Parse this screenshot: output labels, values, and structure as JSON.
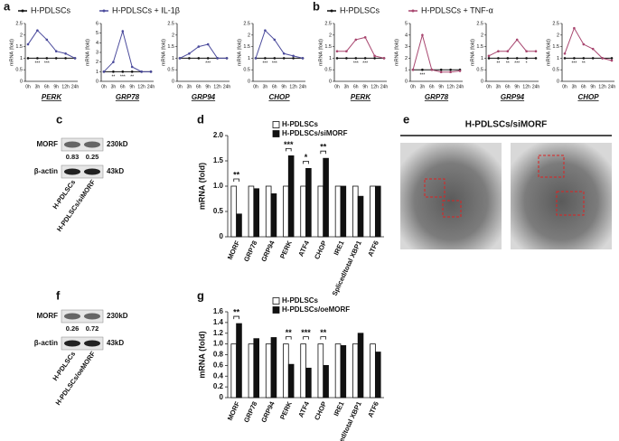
{
  "panel_labels": [
    "a",
    "b",
    "c",
    "d",
    "e",
    "f",
    "g"
  ],
  "chart_data": [
    {
      "type": "line",
      "xlabel": "PERK",
      "ylabel": "mRNA (fold)",
      "categories": [
        "0h",
        "3h",
        "6h",
        "9h",
        "12h",
        "24h"
      ],
      "ylim": [
        0,
        2.5
      ],
      "yticks": [
        0,
        0.5,
        1,
        1.5,
        2,
        2.5
      ],
      "series": [
        {
          "name": "H-PDLSCs",
          "color": "#111111",
          "values": [
            1,
            1,
            1,
            1,
            1,
            1
          ]
        },
        {
          "name": "H-PDLSCs + IL-1β",
          "color": "#4b4b9c",
          "values": [
            1.6,
            2.2,
            1.8,
            1.3,
            1.2,
            1.0
          ]
        }
      ],
      "annotations": [
        null,
        "***",
        "***",
        null,
        null,
        null
      ]
    },
    {
      "type": "line",
      "xlabel": "GRP78",
      "ylabel": "mRNA (fold)",
      "categories": [
        "0h",
        "3h",
        "6h",
        "9h",
        "12h",
        "24h"
      ],
      "ylim": [
        0,
        6
      ],
      "yticks": [
        0,
        1,
        2,
        3,
        4,
        5,
        6
      ],
      "series": [
        {
          "name": "H-PDLSCs",
          "color": "#111111",
          "values": [
            1,
            1,
            1,
            1,
            1,
            1
          ]
        },
        {
          "name": "H-PDLSCs + IL-1β",
          "color": "#4b4b9c",
          "values": [
            1.0,
            2.0,
            5.2,
            1.5,
            1.0,
            1.0
          ]
        }
      ],
      "annotations": [
        null,
        "**",
        "***",
        "**",
        null,
        null
      ]
    },
    {
      "type": "line",
      "xlabel": "GRP94",
      "ylabel": "mRNA (fold)",
      "categories": [
        "0h",
        "3h",
        "6h",
        "9h",
        "12h",
        "24h"
      ],
      "ylim": [
        0,
        2.5
      ],
      "yticks": [
        0,
        0.5,
        1,
        1.5,
        2,
        2.5
      ],
      "series": [
        {
          "name": "H-PDLSCs",
          "color": "#111111",
          "values": [
            1,
            1,
            1,
            1,
            1,
            1
          ]
        },
        {
          "name": "H-PDLSCs + IL-1β",
          "color": "#4b4b9c",
          "values": [
            1.0,
            1.2,
            1.5,
            1.6,
            1.0,
            1.0
          ]
        }
      ],
      "annotations": [
        null,
        null,
        null,
        "***",
        null,
        null
      ]
    },
    {
      "type": "line",
      "xlabel": "CHOP",
      "ylabel": "mRNA (fold)",
      "categories": [
        "0h",
        "3h",
        "6h",
        "9h",
        "12h",
        "24h"
      ],
      "ylim": [
        0,
        2.5
      ],
      "yticks": [
        0,
        0.5,
        1,
        1.5,
        2,
        2.5
      ],
      "series": [
        {
          "name": "H-PDLSCs",
          "color": "#111111",
          "values": [
            1,
            1,
            1,
            1,
            1,
            1
          ]
        },
        {
          "name": "H-PDLSCs + IL-1β",
          "color": "#4b4b9c",
          "values": [
            1.0,
            2.2,
            1.8,
            1.2,
            1.1,
            1.0
          ]
        }
      ],
      "annotations": [
        null,
        "***",
        "***",
        null,
        null,
        null
      ]
    },
    {
      "type": "line",
      "xlabel": "PERK",
      "ylabel": "mRNA (fold)",
      "categories": [
        "0h",
        "3h",
        "6h",
        "9h",
        "12h",
        "24h"
      ],
      "ylim": [
        0,
        2.5
      ],
      "yticks": [
        0,
        0.5,
        1,
        1.5,
        2,
        2.5
      ],
      "series": [
        {
          "name": "H-PDLSCs",
          "color": "#111111",
          "values": [
            1,
            1,
            1,
            1,
            1,
            1
          ]
        },
        {
          "name": "H-PDLSCs + TNF-α",
          "color": "#a8466f",
          "values": [
            1.3,
            1.3,
            1.8,
            1.9,
            1.1,
            1.0
          ]
        }
      ],
      "annotations": [
        null,
        null,
        "***",
        "***",
        null,
        null
      ]
    },
    {
      "type": "line",
      "xlabel": "GRP78",
      "ylabel": "mRNA (fold)",
      "categories": [
        "0h",
        "3h",
        "6h",
        "9h",
        "12h",
        "24h"
      ],
      "ylim": [
        0,
        5
      ],
      "yticks": [
        0,
        1,
        2,
        3,
        4,
        5
      ],
      "series": [
        {
          "name": "H-PDLSCs",
          "color": "#111111",
          "values": [
            1,
            1,
            1,
            1,
            1,
            1
          ]
        },
        {
          "name": "H-PDLSCs + TNF-α",
          "color": "#a8466f",
          "values": [
            1.0,
            4.0,
            1.0,
            0.8,
            0.8,
            0.9
          ]
        }
      ],
      "annotations": [
        null,
        "***",
        null,
        null,
        null,
        null
      ]
    },
    {
      "type": "line",
      "xlabel": "GRP94",
      "ylabel": "mRNA (fold)",
      "categories": [
        "0h",
        "3h",
        "6h",
        "9h",
        "12h",
        "24h"
      ],
      "ylim": [
        0,
        2.5
      ],
      "yticks": [
        0,
        0.5,
        1,
        1.5,
        2,
        2.5
      ],
      "series": [
        {
          "name": "H-PDLSCs",
          "color": "#111111",
          "values": [
            1,
            1,
            1,
            1,
            1,
            1
          ]
        },
        {
          "name": "H-PDLSCs + TNF-α",
          "color": "#a8466f",
          "values": [
            1.1,
            1.3,
            1.3,
            1.8,
            1.3,
            1.3
          ]
        }
      ],
      "annotations": [
        null,
        "**",
        "**",
        "***",
        "*",
        null
      ]
    },
    {
      "type": "line",
      "xlabel": "CHOP",
      "ylabel": "mRNA (fold)",
      "categories": [
        "0h",
        "3h",
        "6h",
        "9h",
        "12h",
        "24h"
      ],
      "ylim": [
        0,
        2.5
      ],
      "yticks": [
        0,
        0.5,
        1,
        1.5,
        2,
        2.5
      ],
      "series": [
        {
          "name": "H-PDLSCs",
          "color": "#111111",
          "values": [
            1,
            1,
            1,
            1,
            1,
            1
          ]
        },
        {
          "name": "H-PDLSCs + TNF-α",
          "color": "#a8466f",
          "values": [
            1.2,
            2.3,
            1.6,
            1.4,
            1.0,
            0.9
          ]
        }
      ],
      "annotations": [
        null,
        "***",
        "**",
        null,
        null,
        null
      ]
    },
    {
      "type": "bar",
      "ylabel": "mRNA (fold)",
      "categories": [
        "MORF",
        "GRP78",
        "GRP94",
        "PERK",
        "ATF4",
        "CHOP",
        "IRE1",
        "Spliced/total XBP1",
        "ATF6"
      ],
      "category_colors": [
        "#111111",
        "#111111",
        "#111111",
        "#c0302a",
        "#c0302a",
        "#c0302a",
        "#111111",
        "#111111",
        "#111111"
      ],
      "ylim": [
        0,
        2.0
      ],
      "yticks": [
        0,
        0.5,
        {
          "value": 1,
          "label": "1.0"
        },
        1.5,
        {
          "value": 2,
          "label": "2.0"
        }
      ],
      "series": [
        {
          "name": "H-PDLSCs",
          "color": "#ffffff",
          "values": [
            1,
            1,
            1,
            1,
            1,
            1,
            1,
            1,
            1
          ]
        },
        {
          "name": "H-PDLSCs/siMORF",
          "color": "#111111",
          "values": [
            0.45,
            0.95,
            0.85,
            1.6,
            1.35,
            1.55,
            1.0,
            0.8,
            1.0
          ]
        }
      ],
      "annotations": [
        "**",
        null,
        null,
        "***",
        "*",
        "**",
        null,
        null,
        null
      ]
    },
    {
      "type": "bar",
      "ylabel": "mRNA (fold)",
      "categories": [
        "MORF",
        "GRP78",
        "GRP94",
        "PERK",
        "ATF4",
        "CHOP",
        "IRE1",
        "Spliced/total XBP1",
        "ATF6"
      ],
      "category_colors": [
        "#111111",
        "#111111",
        "#111111",
        "#c0302a",
        "#c0302a",
        "#c0302a",
        "#111111",
        "#111111",
        "#111111"
      ],
      "ylim": [
        0,
        1.6
      ],
      "yticks": [
        0,
        0.2,
        0.4,
        0.6,
        0.8,
        {
          "value": 1,
          "label": "1.0"
        },
        1.2,
        1.4,
        1.6
      ],
      "series": [
        {
          "name": "H-PDLSCs",
          "color": "#ffffff",
          "values": [
            1,
            1,
            1,
            1,
            1,
            1,
            1,
            1,
            1
          ]
        },
        {
          "name": "H-PDLSCs/oeMORF",
          "color": "#111111",
          "values": [
            1.38,
            1.1,
            1.12,
            0.62,
            0.55,
            0.6,
            0.97,
            1.2,
            0.85
          ]
        }
      ],
      "annotations": [
        "**",
        null,
        null,
        "**",
        "***",
        "**",
        null,
        null,
        null
      ]
    }
  ],
  "blots": [
    {
      "rows": [
        {
          "name": "MORF",
          "size": "230kD",
          "ratios": [
            0.83,
            0.25
          ]
        },
        {
          "name": "β-actin",
          "size": "43kD"
        }
      ],
      "lanes": [
        "H-PDLSCs",
        "H-PDLSCs/siMORF"
      ]
    },
    {
      "rows": [
        {
          "name": "MORF",
          "size": "230kD",
          "ratios": [
            0.26,
            0.72
          ]
        },
        {
          "name": "β-actin",
          "size": "43kD"
        }
      ],
      "lanes": [
        "H-PDLSCs",
        "H-PDLSCs/oeMORF"
      ]
    }
  ],
  "micrograph": {
    "title": "H-PDLSCs/siMORF"
  }
}
